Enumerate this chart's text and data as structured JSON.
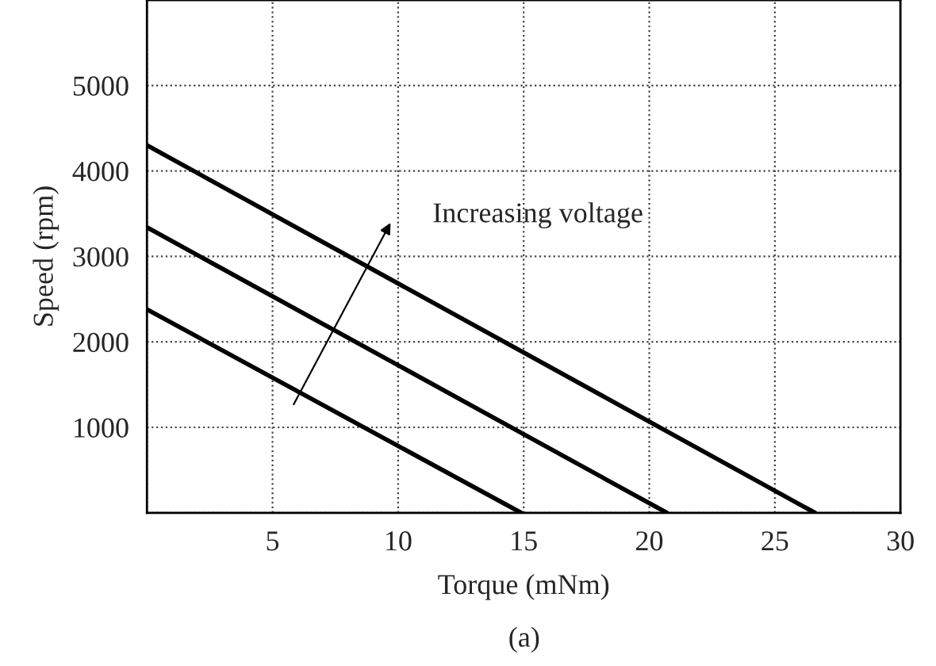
{
  "chart_data": {
    "type": "line",
    "xlabel": "Torque (mNm)",
    "ylabel": "Speed (rpm)",
    "series": [
      {
        "color": "#000000",
        "x": [
          0,
          26.6
        ],
        "values": [
          4300,
          0
        ]
      },
      {
        "color": "#000000",
        "x": [
          0,
          20.7
        ],
        "values": [
          3340,
          0
        ]
      },
      {
        "color": "#000000",
        "x": [
          0,
          14.9
        ],
        "values": [
          2380,
          0
        ]
      }
    ],
    "xlim": [
      0,
      30
    ],
    "ylim": [
      0,
      6000
    ],
    "xticks": [
      {
        "value": 0,
        "label": null
      },
      5,
      10,
      15,
      20,
      25,
      30
    ],
    "yticks": [
      {
        "value": 0,
        "label": null
      },
      1000,
      2000,
      3000,
      4000,
      5000
    ],
    "grid": true,
    "marker": "none",
    "line_style": "solid",
    "legend": false,
    "annotations": [
      "Increasing voltage",
      "(a)"
    ]
  }
}
